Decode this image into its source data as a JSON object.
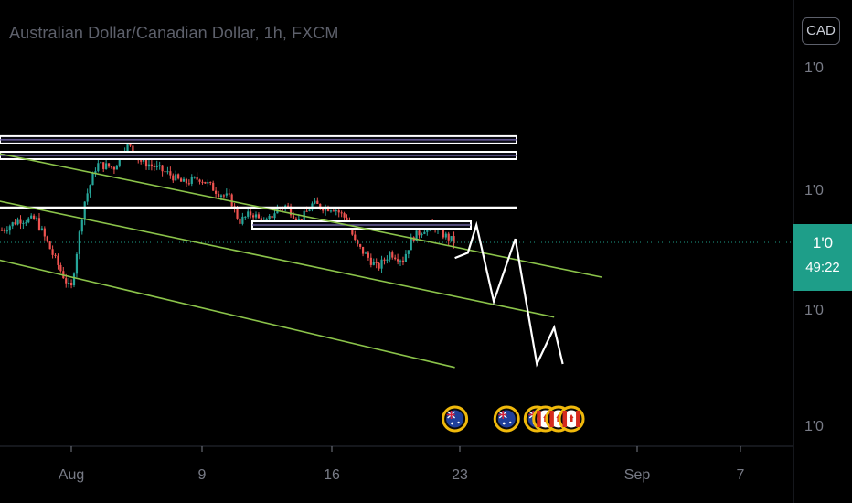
{
  "header": {
    "symbol_title": "Australian Dollar/Canadian Dollar, 1h, FXCM",
    "currency_button": "CAD"
  },
  "price_scale": {
    "tick_labels": [
      "1'0",
      "1'0",
      "1'0",
      "1'0"
    ],
    "current_price": "1'0",
    "countdown": "49:22"
  },
  "time_scale": {
    "labels": [
      "Aug",
      "9",
      "16",
      "23",
      "Sep",
      "7"
    ]
  },
  "colors": {
    "background": "#000000",
    "bull": "#26a69a",
    "bear": "#ef5350",
    "channel": "#8bc34a",
    "level_line": "#ffffff",
    "current_price": "#1e9e89",
    "event_ring": "#f0b90b",
    "axis_text": "#787b86"
  },
  "chart_data": {
    "type": "candlestick",
    "title": "Australian Dollar/Canadian Dollar, 1h, FXCM",
    "x_ticks": [
      "Aug",
      "9",
      "16",
      "23",
      "Sep",
      "7"
    ],
    "y_ticks": [
      "1'0",
      "1'0",
      "1'0",
      "1'0"
    ],
    "grid": false,
    "price_path": [
      [
        0,
        0.5
      ],
      [
        0.4,
        0.56
      ],
      [
        0.8,
        0.56
      ],
      [
        1.2,
        0.35
      ],
      [
        1.6,
        0.15
      ],
      [
        1.9,
        0.65
      ],
      [
        2.2,
        0.88
      ],
      [
        2.6,
        0.86
      ],
      [
        2.9,
        1.0
      ],
      [
        3.2,
        0.9
      ],
      [
        3.5,
        0.87
      ],
      [
        3.9,
        0.82
      ],
      [
        4.2,
        0.77
      ],
      [
        4.6,
        0.8
      ],
      [
        5.0,
        0.72
      ],
      [
        5.3,
        0.68
      ],
      [
        5.5,
        0.55
      ],
      [
        5.8,
        0.6
      ],
      [
        6.1,
        0.53
      ],
      [
        6.4,
        0.63
      ],
      [
        6.6,
        0.64
      ],
      [
        6.9,
        0.55
      ],
      [
        7.2,
        0.65
      ],
      [
        7.5,
        0.63
      ],
      [
        7.7,
        0.63
      ],
      [
        8.0,
        0.56
      ],
      [
        8.2,
        0.42
      ],
      [
        8.5,
        0.34
      ],
      [
        8.7,
        0.28
      ],
      [
        9.0,
        0.37
      ],
      [
        9.3,
        0.33
      ],
      [
        9.5,
        0.45
      ],
      [
        9.8,
        0.51
      ],
      [
        10.0,
        0.53
      ],
      [
        10.2,
        0.48
      ],
      [
        10.5,
        0.43
      ]
    ],
    "last_price_level": 0.43,
    "horizontal_levels": [
      1.02,
      0.93,
      0.63,
      0.53
    ],
    "channel_lines": [
      {
        "from": [
          -3,
          1.09
        ],
        "to": [
          13.9,
          0.23
        ]
      },
      {
        "from": [
          -3,
          0.82
        ],
        "to": [
          12.8,
          0.0
        ]
      },
      {
        "from": [
          -3,
          0.5
        ],
        "to": [
          10.5,
          -0.29
        ]
      }
    ],
    "projection_path": [
      [
        10.5,
        0.34
      ],
      [
        10.8,
        0.37
      ],
      [
        11.0,
        0.53
      ],
      [
        11.4,
        0.09
      ],
      [
        11.9,
        0.45
      ],
      [
        12.4,
        -0.27
      ],
      [
        12.8,
        -0.06
      ],
      [
        13.0,
        -0.27
      ]
    ],
    "event_icons": [
      {
        "x": 10.5,
        "flag": "AUD"
      },
      {
        "x": 11.7,
        "flag": "AUD"
      },
      {
        "x": 12.4,
        "flag": "AUD"
      },
      {
        "x": 12.6,
        "flag": "CAD"
      },
      {
        "x": 12.9,
        "flag": "CAD"
      },
      {
        "x": 13.2,
        "flag": "CAD"
      }
    ]
  }
}
